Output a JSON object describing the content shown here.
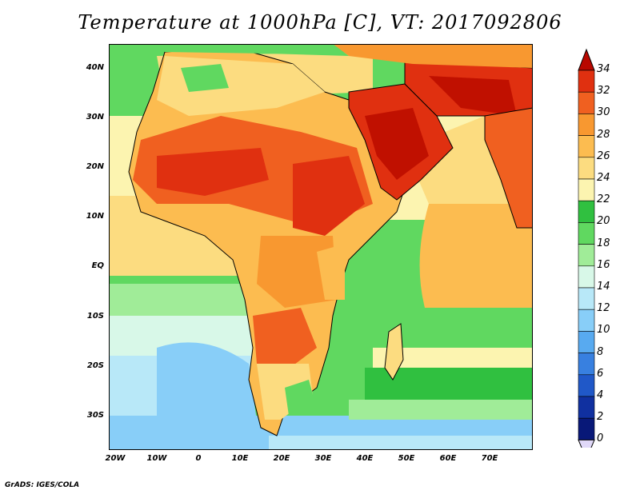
{
  "title": "Temperature at 1000hPa [C], VT: 2017092806",
  "credit": "GrADS: IGES/COLA",
  "map": {
    "lat_labels": [
      "40N",
      "30N",
      "20N",
      "10N",
      "EQ",
      "10S",
      "20S",
      "30S"
    ],
    "lon_labels": [
      "20W",
      "10W",
      "0",
      "10E",
      "20E",
      "30E",
      "40E",
      "50E",
      "60E",
      "70E"
    ]
  },
  "colorbar": {
    "labels": [
      "34",
      "32",
      "30",
      "28",
      "26",
      "24",
      "22",
      "20",
      "18",
      "16",
      "14",
      "12",
      "10",
      "8",
      "6",
      "4",
      "2",
      "0"
    ],
    "colors": [
      "#c01000",
      "#e03010",
      "#f06020",
      "#f89830",
      "#fcbc50",
      "#fcdc80",
      "#fcf4b0",
      "#30c040",
      "#60d860",
      "#a0ec98",
      "#d8f8e8",
      "#b8e8f8",
      "#88cef8",
      "#58aaf0",
      "#3880e0",
      "#2058c8",
      "#1030a0",
      "#081878",
      "#e0d8f8"
    ],
    "over_color": "#b80800",
    "under_color": "#e0d8f8"
  }
}
